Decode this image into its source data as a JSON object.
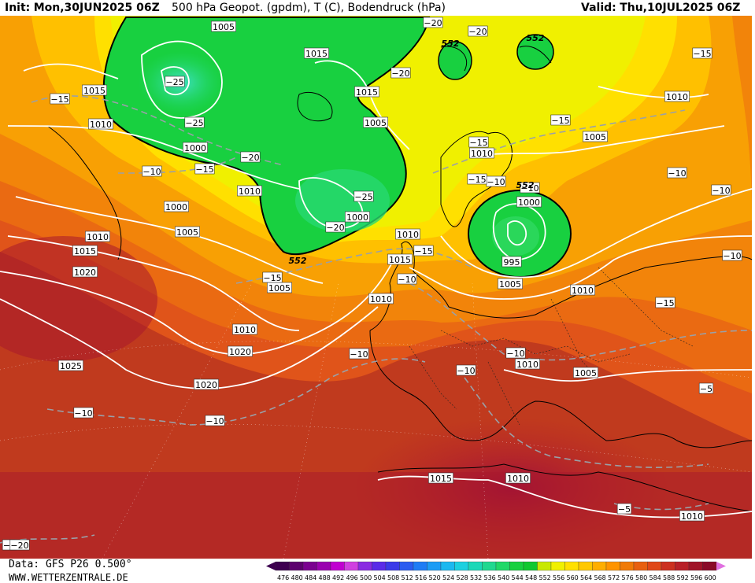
{
  "header": {
    "init_label": "Init:",
    "init_value": "Mon,30JUN2025 06Z",
    "center_title": "500 hPa Geopot. (gpdm), T (C), Bodendruck (hPa)",
    "valid_label": "Valid:",
    "valid_value": "Thu,10JUL2025 06Z"
  },
  "footer": {
    "data_source": "Data: GFS P26 0.500°",
    "website": "WWW.WETTERZENTRALE.DE"
  },
  "legend": {
    "values": [
      "476",
      "480",
      "484",
      "488",
      "492",
      "496",
      "500",
      "504",
      "508",
      "512",
      "516",
      "520",
      "524",
      "528",
      "532",
      "536",
      "540",
      "544",
      "548",
      "552",
      "556",
      "560",
      "564",
      "568",
      "572",
      "576",
      "580",
      "584",
      "588",
      "592",
      "596",
      "600"
    ],
    "colors": [
      "#3d0050",
      "#5c006e",
      "#7a0090",
      "#9a00b0",
      "#c000d0",
      "#d040e0",
      "#8a2be2",
      "#5a2be8",
      "#3a3ae8",
      "#2a5cf0",
      "#1e7cf5",
      "#1c9cf5",
      "#1cb8f0",
      "#1cd0e0",
      "#1cd8b8",
      "#20d890",
      "#20d868",
      "#18d040",
      "#10c830",
      "#c8e800",
      "#f0f000",
      "#ffe000",
      "#ffc800",
      "#ffae00",
      "#ff9400",
      "#f07a08",
      "#e86010",
      "#e04818",
      "#cc3020",
      "#b82028",
      "#a01428",
      "#8a0a28"
    ],
    "arrow_color": "#e070e0"
  },
  "map": {
    "background_color": "#c03a1e",
    "isobar_labels": [
      "1005",
      "1015",
      "1015",
      "1010",
      "1000",
      "1015",
      "1005",
      "1000",
      "1010",
      "1005",
      "1000",
      "1010",
      "1015",
      "1020",
      "1005",
      "1010",
      "1010",
      "1015",
      "1020",
      "1025",
      "1020",
      "1010",
      "995",
      "1005",
      "1010",
      "1010",
      "1010",
      "1005",
      "1000",
      "1005",
      "1010",
      "1015",
      "1010",
      "1010"
    ],
    "temp_labels": [
      "−20",
      "−20",
      "−15",
      "−15",
      "−25",
      "−25",
      "−20",
      "−15",
      "−10",
      "−15",
      "−20",
      "−25",
      "−20",
      "−15",
      "−15",
      "−10",
      "−10",
      "−15",
      "−10",
      "−10",
      "−15",
      "−10",
      "−10",
      "−10",
      "−10",
      "−10",
      "−5",
      "−10",
      "−10",
      "−5",
      "−5",
      "−20",
      "−15"
    ],
    "geopotential_labels": [
      "552",
      "552",
      "552",
      "552"
    ]
  }
}
